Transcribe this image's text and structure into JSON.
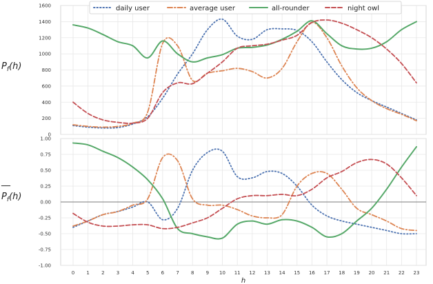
{
  "chart_data": [
    {
      "type": "line",
      "ylabel": "P_f(h)",
      "xlabel": "",
      "ylim": [
        0,
        1600
      ],
      "yticks": [
        0,
        200,
        400,
        600,
        800,
        1000,
        1200,
        1400,
        1600
      ],
      "grid": "both",
      "x": [
        0,
        1,
        2,
        3,
        4,
        5,
        6,
        7,
        8,
        9,
        10,
        11,
        12,
        13,
        14,
        15,
        16,
        17,
        18,
        19,
        20,
        21,
        22,
        23
      ],
      "series": [
        {
          "name": "daily user",
          "style": "dotted",
          "color": "#4c72b0",
          "values": [
            110,
            90,
            80,
            85,
            130,
            220,
            450,
            750,
            1000,
            1300,
            1430,
            1220,
            1180,
            1300,
            1310,
            1290,
            1150,
            900,
            680,
            520,
            420,
            340,
            260,
            180
          ]
        },
        {
          "name": "average user",
          "style": "dashdot",
          "color": "#dd8452",
          "values": [
            120,
            100,
            90,
            100,
            140,
            280,
            1130,
            1100,
            670,
            760,
            790,
            820,
            780,
            700,
            820,
            1150,
            1390,
            1200,
            850,
            580,
            420,
            320,
            250,
            170
          ]
        },
        {
          "name": "all-rounder",
          "style": "solid",
          "color": "#55a868",
          "values": [
            1360,
            1320,
            1240,
            1150,
            1100,
            950,
            1160,
            1000,
            900,
            950,
            990,
            1070,
            1080,
            1110,
            1180,
            1280,
            1410,
            1250,
            1100,
            1060,
            1070,
            1150,
            1300,
            1400
          ]
        },
        {
          "name": "night owl",
          "style": "dashed",
          "color": "#c44e52",
          "values": [
            400,
            260,
            180,
            150,
            140,
            200,
            520,
            640,
            630,
            760,
            900,
            1070,
            1100,
            1120,
            1170,
            1230,
            1390,
            1420,
            1380,
            1300,
            1200,
            1060,
            880,
            640
          ]
        }
      ]
    },
    {
      "type": "line",
      "ylabel": "P_f(h) normalized",
      "xlabel": "h",
      "ylim": [
        -1.0,
        1.0
      ],
      "yticks": [
        "-1.00",
        "-0.75",
        "-0.50",
        "-0.25",
        "0.00",
        "0.25",
        "0.50",
        "0.75",
        "1.00"
      ],
      "zero_line": true,
      "grid": "both",
      "x": [
        0,
        1,
        2,
        3,
        4,
        5,
        6,
        7,
        8,
        9,
        10,
        11,
        12,
        13,
        14,
        15,
        16,
        17,
        18,
        19,
        20,
        21,
        22,
        23
      ],
      "series": [
        {
          "name": "daily user",
          "style": "dotted",
          "color": "#4c72b0",
          "values": [
            -0.4,
            -0.3,
            -0.2,
            -0.15,
            -0.08,
            0.0,
            -0.28,
            -0.1,
            0.5,
            0.78,
            0.8,
            0.4,
            0.38,
            0.48,
            0.45,
            0.25,
            -0.05,
            -0.22,
            -0.3,
            -0.35,
            -0.4,
            -0.45,
            -0.5,
            -0.5
          ]
        },
        {
          "name": "average user",
          "style": "dashdot",
          "color": "#dd8452",
          "values": [
            -0.38,
            -0.3,
            -0.2,
            -0.15,
            -0.05,
            0.05,
            0.7,
            0.65,
            0.05,
            -0.05,
            -0.05,
            -0.12,
            -0.22,
            -0.25,
            -0.2,
            0.25,
            0.45,
            0.45,
            0.2,
            -0.1,
            -0.2,
            -0.3,
            -0.42,
            -0.45
          ]
        },
        {
          "name": "all-rounder",
          "style": "solid",
          "color": "#55a868",
          "values": [
            0.93,
            0.9,
            0.8,
            0.7,
            0.55,
            0.35,
            0.05,
            -0.42,
            -0.5,
            -0.55,
            -0.57,
            -0.35,
            -0.3,
            -0.35,
            -0.28,
            -0.3,
            -0.4,
            -0.55,
            -0.5,
            -0.3,
            -0.1,
            0.2,
            0.55,
            0.87
          ]
        },
        {
          "name": "night owl",
          "style": "dashed",
          "color": "#c44e52",
          "values": [
            -0.18,
            -0.32,
            -0.38,
            -0.38,
            -0.36,
            -0.36,
            -0.42,
            -0.4,
            -0.33,
            -0.25,
            -0.1,
            0.05,
            0.1,
            0.1,
            0.12,
            0.1,
            0.2,
            0.38,
            0.48,
            0.62,
            0.67,
            0.6,
            0.38,
            0.1
          ]
        }
      ]
    }
  ],
  "legend": {
    "placement": "top-center",
    "entries": [
      "daily user",
      "average user",
      "all-rounder",
      "night owl"
    ]
  }
}
